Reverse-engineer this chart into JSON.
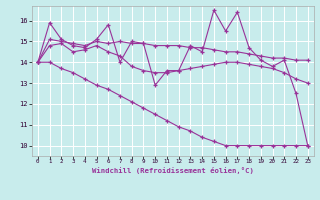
{
  "title": "",
  "xlabel": "Windchill (Refroidissement éolien,°C)",
  "background_color": "#c8ecec",
  "grid_color": "#ffffff",
  "line_color": "#993399",
  "xlim": [
    -0.5,
    23.5
  ],
  "ylim": [
    9.5,
    16.7
  ],
  "xticks": [
    0,
    1,
    2,
    3,
    4,
    5,
    6,
    7,
    8,
    9,
    10,
    11,
    12,
    13,
    14,
    15,
    16,
    17,
    18,
    19,
    20,
    21,
    22,
    23
  ],
  "yticks": [
    10,
    11,
    12,
    13,
    14,
    15,
    16
  ],
  "series": [
    [
      14.0,
      15.9,
      15.1,
      14.8,
      14.7,
      15.1,
      15.8,
      14.0,
      15.0,
      14.9,
      12.9,
      13.6,
      13.6,
      14.8,
      14.5,
      16.5,
      15.5,
      16.4,
      14.7,
      14.1,
      13.8,
      14.1,
      12.5,
      10.0
    ],
    [
      14.0,
      15.1,
      15.0,
      14.9,
      14.8,
      15.0,
      14.9,
      15.0,
      14.9,
      14.9,
      14.8,
      14.8,
      14.8,
      14.7,
      14.7,
      14.6,
      14.5,
      14.5,
      14.4,
      14.3,
      14.2,
      14.2,
      14.1,
      14.1
    ],
    [
      14.0,
      14.8,
      14.9,
      14.5,
      14.6,
      14.8,
      14.5,
      14.3,
      13.8,
      13.6,
      13.5,
      13.5,
      13.6,
      13.7,
      13.8,
      13.9,
      14.0,
      14.0,
      13.9,
      13.8,
      13.7,
      13.5,
      13.2,
      13.0
    ],
    [
      14.0,
      14.0,
      13.7,
      13.5,
      13.2,
      12.9,
      12.7,
      12.4,
      12.1,
      11.8,
      11.5,
      11.2,
      10.9,
      10.7,
      10.4,
      10.2,
      10.0,
      10.0,
      10.0,
      10.0,
      10.0,
      10.0,
      10.0,
      10.0
    ]
  ]
}
